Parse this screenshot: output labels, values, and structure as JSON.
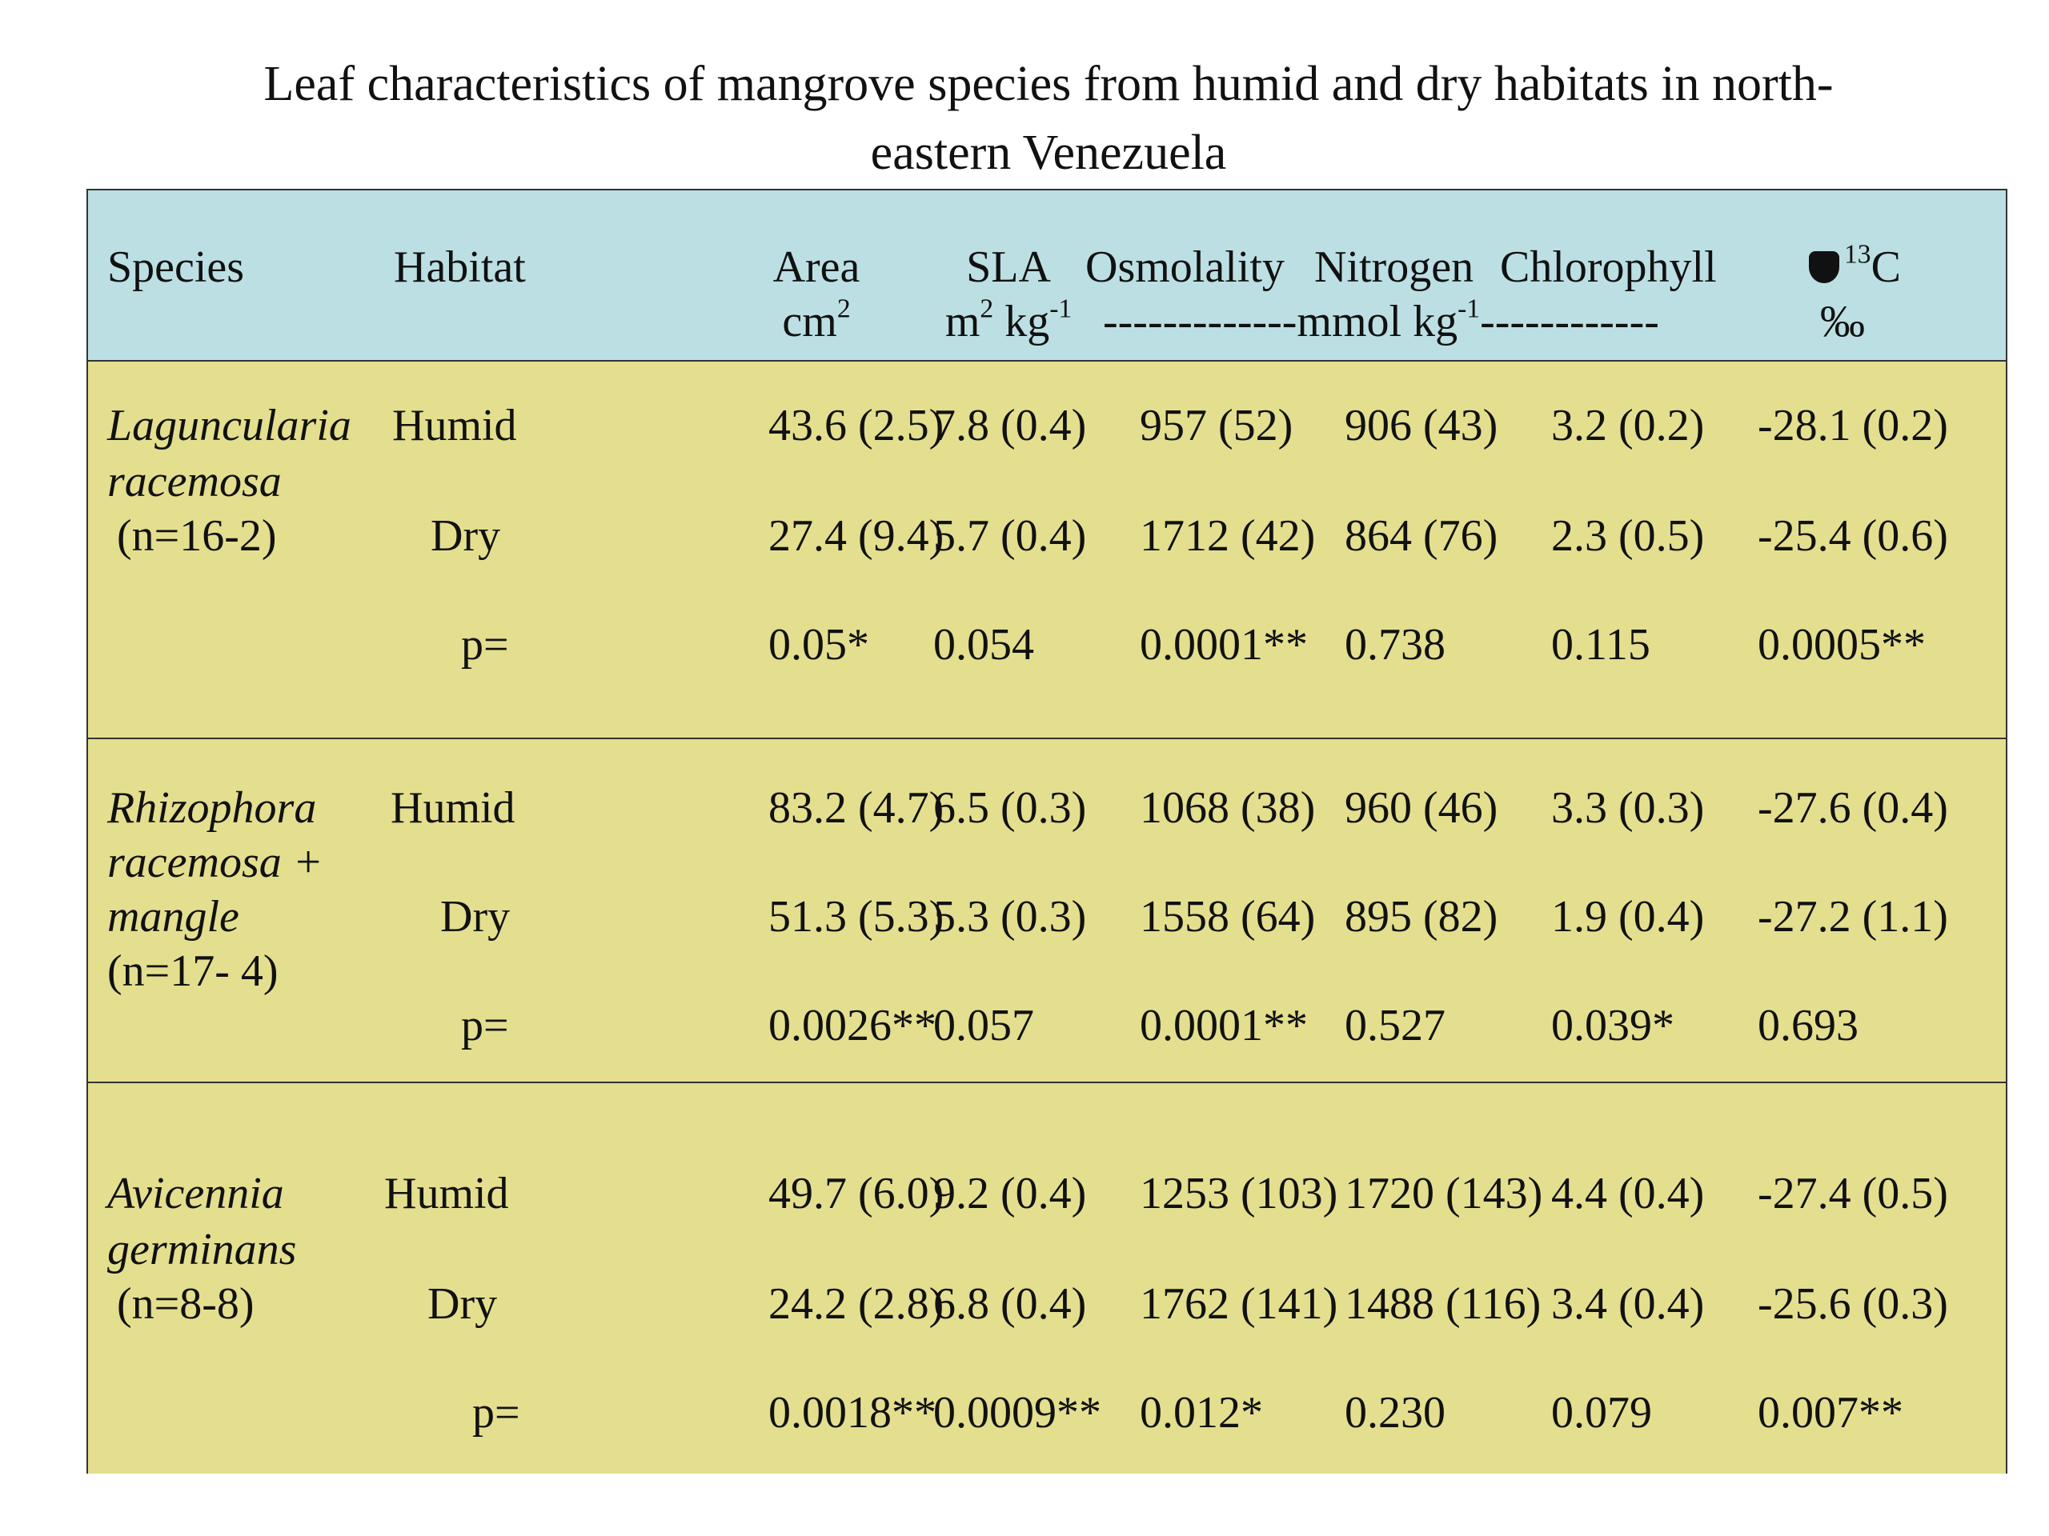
{
  "title": "Leaf characteristics of mangrove species from humid and dry habitats in north-eastern Venezuela",
  "title_line1": "Leaf characteristics of mangrove species from humid and dry habitats in north-",
  "title_line2": "eastern Venezuela",
  "header": {
    "species": "Species",
    "habitat": "Habitat",
    "area": "Area",
    "area_unit": "cm",
    "area_unit_sup": "2",
    "sla": "SLA",
    "sla_unit_a": "m",
    "sla_unit_a_sup": "2",
    "sla_unit_b": " kg",
    "sla_unit_b_sup": "-1",
    "osmolality": "Osmolality",
    "nitrogen": "Nitrogen",
    "chlorophyll": "Chlorophyll",
    "shared_unit_left": "-------------mmol kg",
    "shared_unit_sup": "-1",
    "shared_unit_right": "------------",
    "d13c_sup": "13",
    "d13c": "C",
    "d13c_unit": "‰",
    "d13c_icon": "delta-symbol"
  },
  "groups": [
    {
      "species_lines": [
        "Laguncularia",
        "racemosa"
      ],
      "n": "(n=16-2)",
      "rows": [
        {
          "habitat": "Humid",
          "area": "43.6 (2.5)",
          "sla": "7.8 (0.4)",
          "osmolality": "957 (52)",
          "nitrogen": "906 (43)",
          "chlorophyll": "3.2 (0.2)",
          "d13c": "-28.1 (0.2)"
        },
        {
          "habitat": "Dry",
          "area": "27.4 (9.4)",
          "sla": "5.7 (0.4)",
          "osmolality": "1712 (42)",
          "nitrogen": "864 (76)",
          "chlorophyll": "2.3 (0.5)",
          "d13c": "-25.4 (0.6)"
        },
        {
          "habitat": "p=",
          "area": "0.05*",
          "sla": "0.054",
          "osmolality": "0.0001**",
          "nitrogen": "0.738",
          "chlorophyll": "0.115",
          "d13c": "0.0005**"
        }
      ]
    },
    {
      "species_lines": [
        "Rhizophora",
        "racemosa +",
        "mangle"
      ],
      "n": "(n=17- 4)",
      "rows": [
        {
          "habitat": "Humid",
          "area": "83.2 (4.7)",
          "sla": "6.5 (0.3)",
          "osmolality": "1068 (38)",
          "nitrogen": "960 (46)",
          "chlorophyll": "3.3 (0.3)",
          "d13c": "-27.6 (0.4)"
        },
        {
          "habitat": "Dry",
          "area": "51.3 (5.3)",
          "sla": "5.3 (0.3)",
          "osmolality": "1558 (64)",
          "nitrogen": "895 (82)",
          "chlorophyll": "1.9 (0.4)",
          "d13c": "-27.2 (1.1)"
        },
        {
          "habitat": "p=",
          "area": "0.0026**",
          "sla": "0.057",
          "osmolality": "0.0001**",
          "nitrogen": "0.527",
          "chlorophyll": "0.039*",
          "d13c": "0.693"
        }
      ]
    },
    {
      "species_lines": [
        "Avicennia",
        "germinans"
      ],
      "n": "(n=8-8)",
      "rows": [
        {
          "habitat": "Humid",
          "area": "49.7 (6.0)",
          "sla": "9.2 (0.4)",
          "osmolality": "1253 (103)",
          "nitrogen": "1720 (143)",
          "chlorophyll": "4.4 (0.4)",
          "d13c": "-27.4 (0.5)"
        },
        {
          "habitat": "Dry",
          "area": "24.2 (2.8)",
          "sla": "6.8 (0.4)",
          "osmolality": "1762 (141)",
          "nitrogen": "1488 (116)",
          "chlorophyll": "3.4 (0.4)",
          "d13c": "-25.6 (0.3)"
        },
        {
          "habitat": "p=",
          "area": "0.0018**",
          "sla": "0.0009**",
          "osmolality": "0.012*",
          "nitrogen": "0.230",
          "chlorophyll": "0.079",
          "d13c": "0.007**"
        }
      ]
    }
  ]
}
